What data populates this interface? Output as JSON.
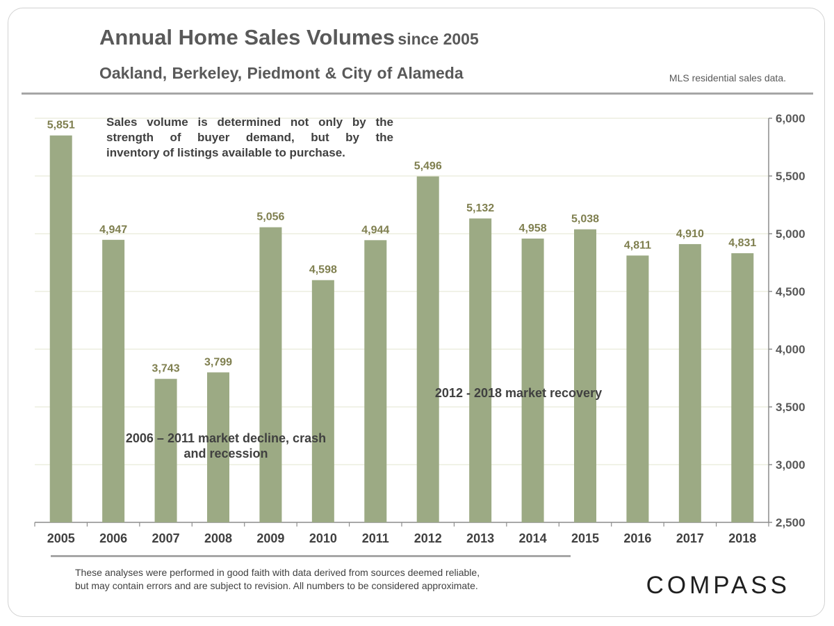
{
  "header": {
    "title_main": "Annual Home Sales Volumes",
    "title_suffix": "since 2005",
    "subtitle": "Oakland, Berkeley, Piedmont & City of Alameda",
    "source_note": "MLS residential sales data."
  },
  "notes": {
    "sales_note": [
      "Sales volume is determined not only by the",
      "strength of buyer demand, but by the",
      "inventory of listings available to purchase."
    ],
    "decline_annotation": [
      "2006 – 2011 market decline, crash",
      "and recession"
    ],
    "recovery_annotation": "2012 - 2018 market recovery"
  },
  "footer": {
    "disclaimer_line1": "These analyses were performed in good faith with data derived from sources deemed reliable,",
    "disclaimer_line2": "but may contain errors and are subject to revision.  All numbers to be considered  approximate.",
    "brand": "COMPASS"
  },
  "colors": {
    "bar": "#9caa84",
    "data_label": "#7f7f4f",
    "grid": "#e3e6cf",
    "axis": "#8c8c8c",
    "text": "#595959"
  },
  "chart_data": {
    "type": "bar",
    "categories": [
      "2005",
      "2006",
      "2007",
      "2008",
      "2009",
      "2010",
      "2011",
      "2012",
      "2013",
      "2014",
      "2015",
      "2016",
      "2017",
      "2018"
    ],
    "values": [
      5851,
      4947,
      3743,
      3799,
      5056,
      4598,
      4944,
      5496,
      5132,
      4958,
      5038,
      4811,
      4910,
      4831
    ],
    "value_labels": [
      "5,851",
      "4,947",
      "3,743",
      "3,799",
      "5,056",
      "4,598",
      "4,944",
      "5,496",
      "5,132",
      "4,958",
      "5,038",
      "4,811",
      "4,910",
      "4,831"
    ],
    "ylim": [
      2500,
      6000
    ],
    "y_ticks": [
      2500,
      3000,
      3500,
      4000,
      4500,
      5000,
      5500,
      6000
    ],
    "y_tick_labels": [
      "2,500",
      "3,000",
      "3,500",
      "4,000",
      "4,500",
      "5,000",
      "5,500",
      "6,000"
    ],
    "y_axis_position": "right",
    "grid": true,
    "legend": "none"
  }
}
